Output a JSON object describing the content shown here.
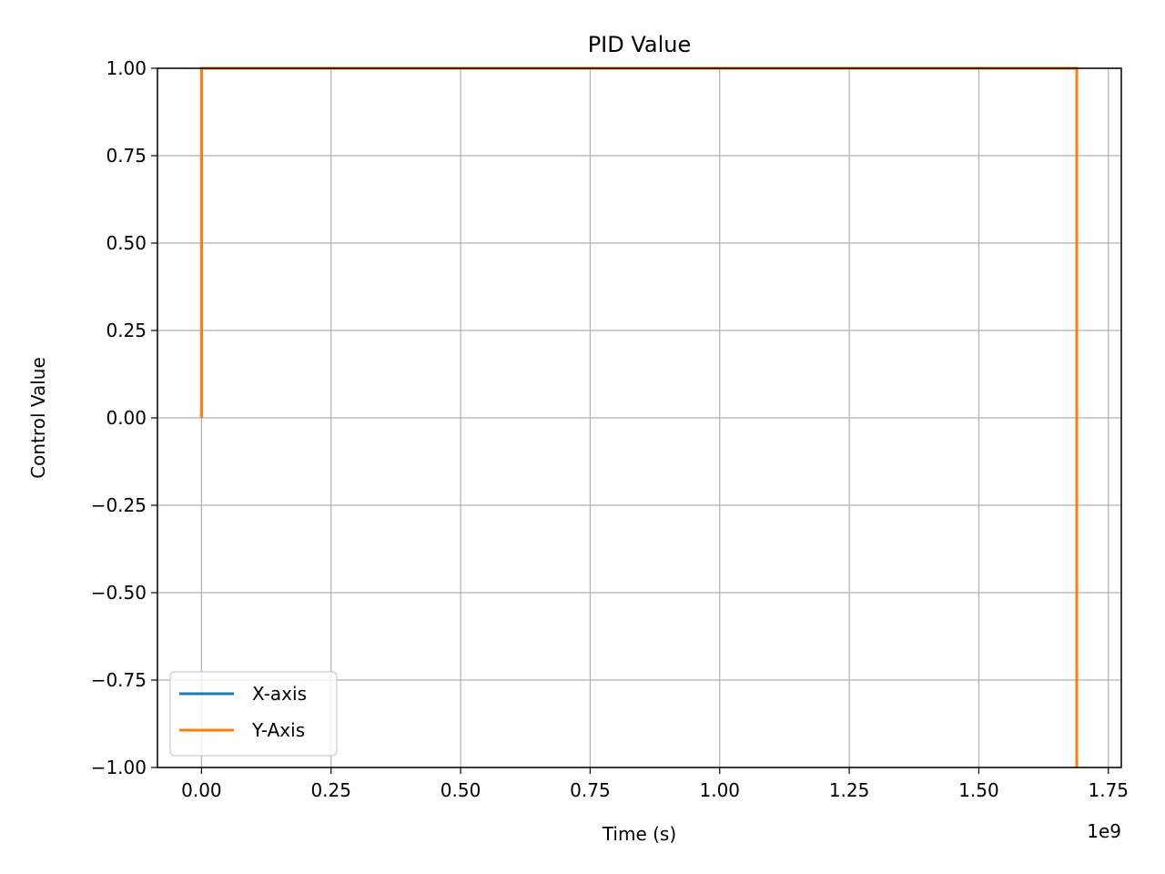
{
  "chart_data": {
    "type": "line",
    "title": "PID Value",
    "xlabel": "Time (s)",
    "ylabel": "Control Value",
    "x_offset_label": "1e9",
    "xlim": [
      -0.085,
      1.775
    ],
    "ylim": [
      -1.0,
      1.0
    ],
    "x_ticks": [
      0.0,
      0.25,
      0.5,
      0.75,
      1.0,
      1.25,
      1.5,
      1.75
    ],
    "x_tick_labels": [
      "0.00",
      "0.25",
      "0.50",
      "0.75",
      "1.00",
      "1.25",
      "1.50",
      "1.75"
    ],
    "y_ticks": [
      -1.0,
      -0.75,
      -0.5,
      -0.25,
      0.0,
      0.25,
      0.5,
      0.75,
      1.0
    ],
    "y_tick_labels": [
      "−1.00",
      "−0.75",
      "−0.50",
      "−0.25",
      "0.00",
      "0.25",
      "0.50",
      "0.75",
      "1.00"
    ],
    "grid": true,
    "legend_position": "lower-left",
    "series": [
      {
        "name": "X-axis",
        "color": "#1f77b4",
        "x": [
          0.0,
          0.0,
          1.689,
          1.689
        ],
        "y": [
          0.0,
          1.0,
          1.0,
          -1.0
        ]
      },
      {
        "name": "Y-Axis",
        "color": "#ff7f0e",
        "x": [
          0.0,
          0.0,
          1.689,
          1.689
        ],
        "y": [
          0.0,
          1.0,
          1.0,
          -1.0
        ]
      }
    ]
  }
}
